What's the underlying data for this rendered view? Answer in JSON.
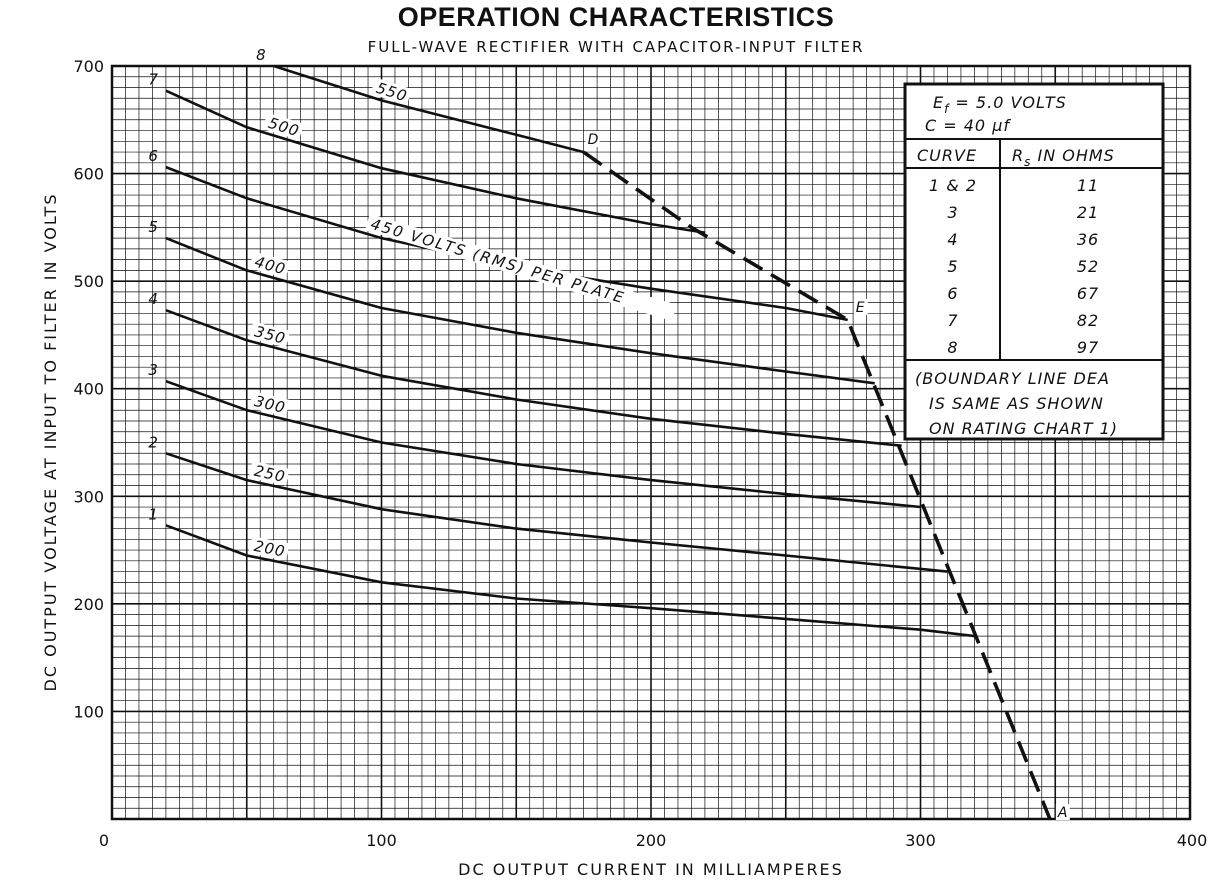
{
  "chart_data": {
    "type": "line",
    "title": "OPERATION CHARACTERISTICS",
    "subtitle": "FULL-WAVE RECTIFIER WITH CAPACITOR-INPUT FILTER",
    "xlabel": "DC OUTPUT CURRENT IN MILLIAMPERES",
    "ylabel": "DC OUTPUT VOLTAGE AT INPUT TO FILTER IN VOLTS",
    "xlim": [
      0,
      400
    ],
    "ylim": [
      0,
      700
    ],
    "xticks": [
      "0",
      "100",
      "200",
      "300",
      "400"
    ],
    "yticks": [
      "100",
      "200",
      "300",
      "400",
      "500",
      "600",
      "700"
    ],
    "grid": true,
    "series": [
      {
        "curve": "1",
        "label": "200",
        "x": [
          20,
          50,
          100,
          150,
          200,
          250,
          300,
          320
        ],
        "y": [
          273,
          245,
          220,
          205,
          196,
          186,
          176,
          170
        ]
      },
      {
        "curve": "2",
        "label": "250",
        "x": [
          20,
          50,
          100,
          150,
          200,
          250,
          310
        ],
        "y": [
          340,
          315,
          288,
          270,
          257,
          245,
          230
        ]
      },
      {
        "curve": "3",
        "label": "300",
        "x": [
          20,
          50,
          100,
          150,
          200,
          250,
          300
        ],
        "y": [
          407,
          380,
          350,
          330,
          315,
          302,
          290
        ]
      },
      {
        "curve": "4",
        "label": "350",
        "x": [
          20,
          50,
          100,
          150,
          200,
          250,
          293
        ],
        "y": [
          473,
          445,
          412,
          390,
          372,
          358,
          347
        ]
      },
      {
        "curve": "5",
        "label": "400",
        "x": [
          20,
          50,
          100,
          150,
          200,
          250,
          283
        ],
        "y": [
          540,
          510,
          475,
          452,
          433,
          416,
          405
        ]
      },
      {
        "curve": "6",
        "label": "450 VOLTS (RMS) PER PLATE",
        "x": [
          20,
          50,
          100,
          150,
          200,
          250,
          273
        ],
        "y": [
          606,
          577,
          540,
          513,
          493,
          475,
          464
        ]
      },
      {
        "curve": "7",
        "label": "500",
        "x": [
          20,
          50,
          100,
          150,
          200,
          220
        ],
        "y": [
          677,
          643,
          605,
          577,
          553,
          545
        ]
      },
      {
        "curve": "8",
        "label": "550",
        "x": [
          60,
          100,
          150,
          175
        ],
        "y": [
          700,
          668,
          636,
          620
        ]
      }
    ],
    "boundary": {
      "style": "dashed",
      "x": [
        175,
        215,
        273,
        348
      ],
      "y": [
        620,
        550,
        464,
        0
      ],
      "points": [
        {
          "label": "D",
          "x": 175,
          "y": 620
        },
        {
          "label": "E",
          "x": 273,
          "y": 464
        },
        {
          "label": "A",
          "x": 348,
          "y": 0
        }
      ]
    },
    "legend_box": {
      "placement": "top-right",
      "line1": "E",
      "line1_sub": "f",
      "line1_rest": " = 5.0 VOLTS",
      "line2": "C = 40 μf",
      "col1_header": "CURVE",
      "col2_header": "R",
      "col2_header_sub": "s",
      "col2_header_rest": " IN OHMS",
      "rows": [
        {
          "curve": "1 & 2",
          "ohms": "11"
        },
        {
          "curve": "3",
          "ohms": "21"
        },
        {
          "curve": "4",
          "ohms": "36"
        },
        {
          "curve": "5",
          "ohms": "52"
        },
        {
          "curve": "6",
          "ohms": "67"
        },
        {
          "curve": "7",
          "ohms": "82"
        },
        {
          "curve": "8",
          "ohms": "97"
        }
      ],
      "note_lines": [
        "(BOUNDARY LINE DEA",
        "IS SAME AS SHOWN",
        "ON RATING CHART 1)"
      ]
    }
  }
}
